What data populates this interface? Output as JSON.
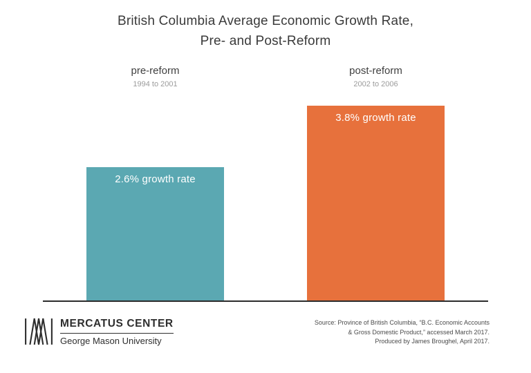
{
  "title": {
    "line1": "British Columbia Average Economic Growth Rate,",
    "line2": "Pre- and Post-Reform"
  },
  "chart_data": {
    "type": "bar",
    "title": "British Columbia Average Economic Growth Rate, Pre- and Post-Reform",
    "categories": [
      "pre-reform",
      "post-reform"
    ],
    "category_sublabels": [
      "1994 to 2001",
      "2002 to 2006"
    ],
    "values": [
      2.6,
      3.8
    ],
    "bar_labels": [
      "2.6% growth rate",
      "3.8% growth rate"
    ],
    "colors": [
      "#5ba8b2",
      "#e7713c"
    ],
    "unit": "% growth rate",
    "ylim": [
      0,
      3.8
    ],
    "grid": false,
    "legend": false,
    "baseline_color": "#2b2b2b"
  },
  "footer": {
    "logo_title": "MERCATUS CENTER",
    "logo_subtitle": "George Mason University",
    "source_lines": [
      "Source: Province of British Columbia, “B.C. Economic Accounts",
      "& Gross Domestic Product,” accessed March 2017.",
      "Produced by James Broughel, April 2017."
    ]
  }
}
